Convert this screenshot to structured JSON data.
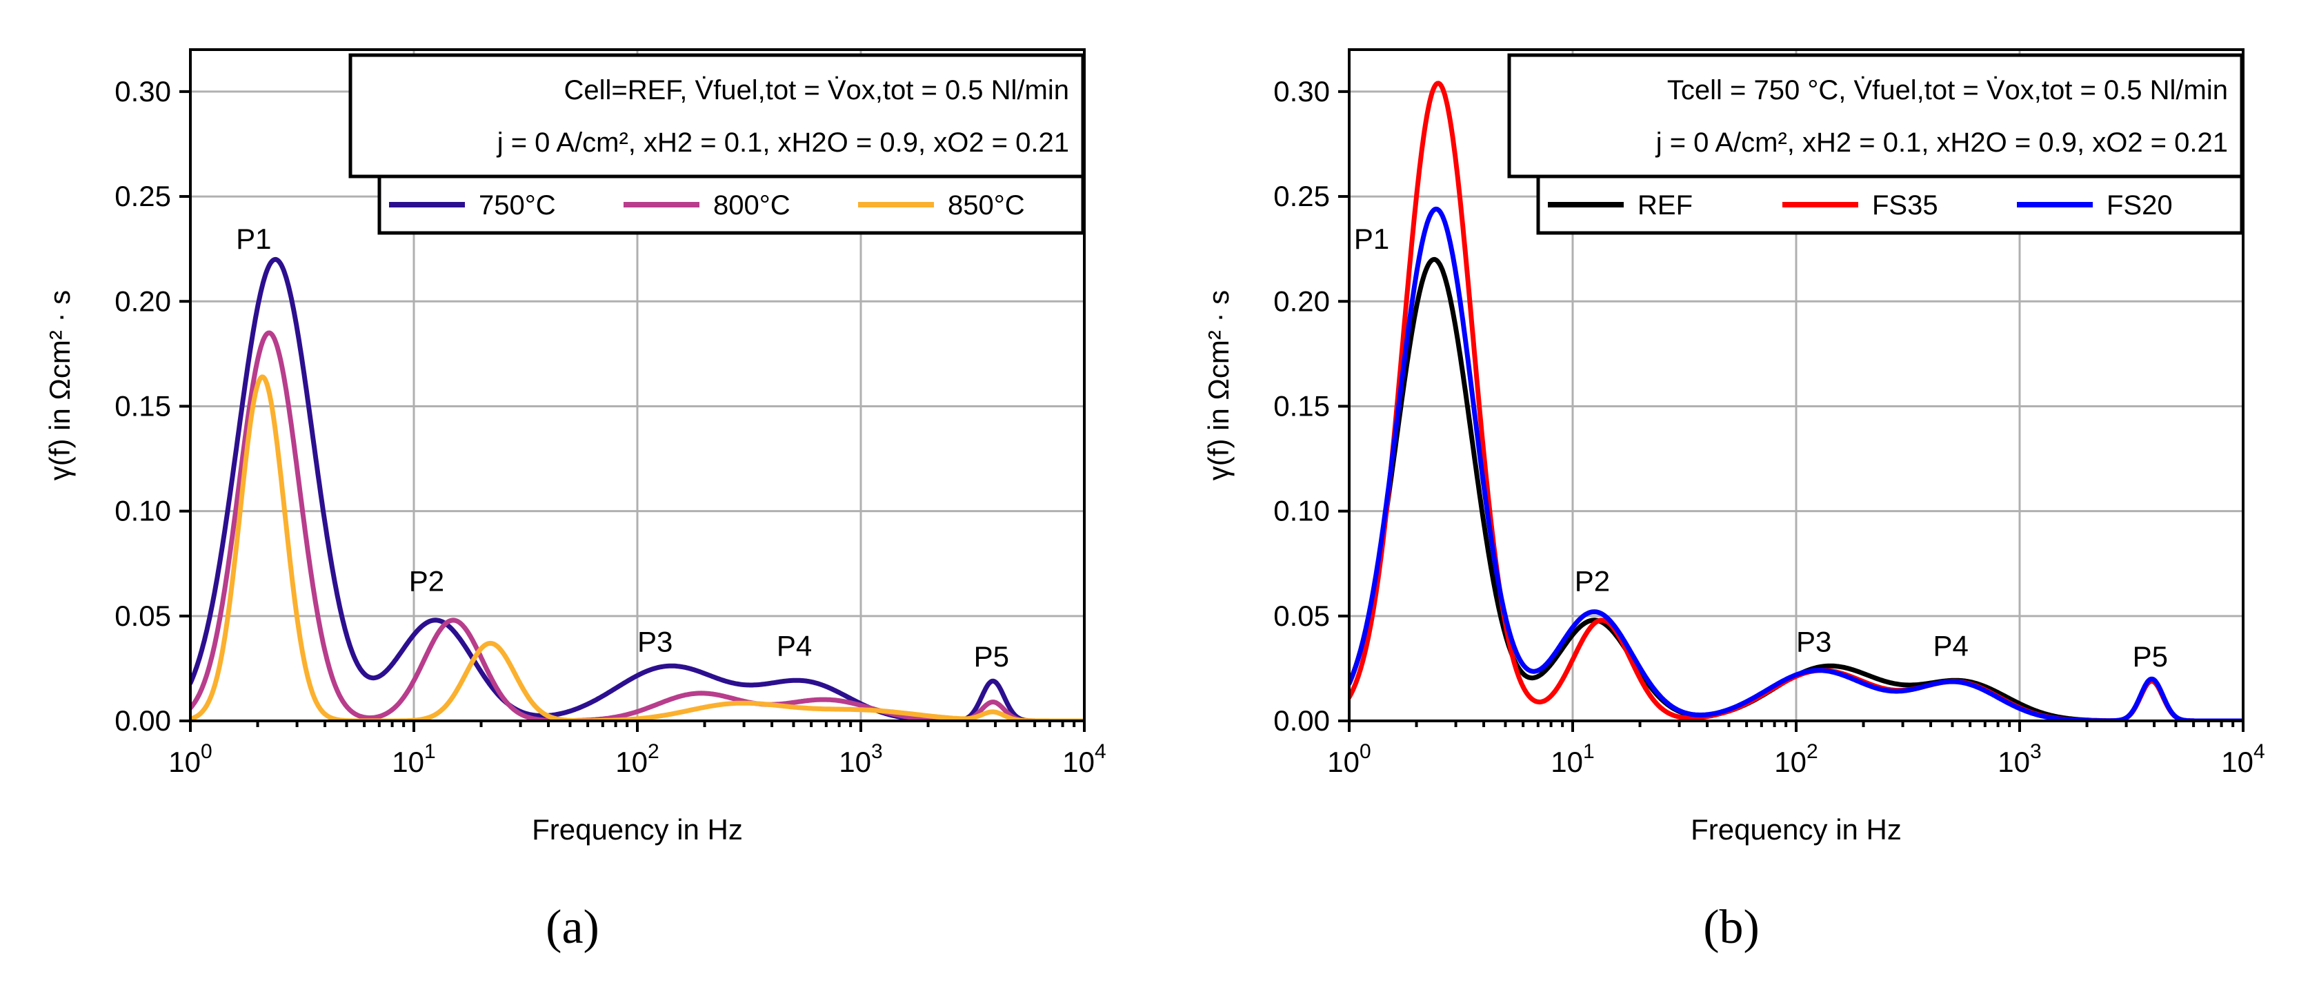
{
  "chart_data": [
    {
      "type": "line",
      "panel_label": "(a)",
      "info_line1": "Cell=REF, V̇fuel,tot = V̇ox,tot = 0.5 Nl/min",
      "info_line2": "j = 0 A/cm², xH2 = 0.1, xH2O = 0.9, xO2 = 0.21",
      "xlabel": "Frequency in Hz",
      "ylabel": "γ(f) in Ωcm² · s",
      "xscale": "log",
      "xlim": [
        1,
        10000
      ],
      "ylim": [
        0,
        0.32
      ],
      "x_ticks": [
        {
          "value": 1,
          "base": "10",
          "exp": "0"
        },
        {
          "value": 10,
          "base": "10",
          "exp": "1"
        },
        {
          "value": 100,
          "base": "10",
          "exp": "2"
        },
        {
          "value": 1000,
          "base": "10",
          "exp": "3"
        },
        {
          "value": 10000,
          "base": "10",
          "exp": "4"
        }
      ],
      "y_ticks": [
        {
          "value": 0,
          "label": "0.00"
        },
        {
          "value": 0.05,
          "label": "0.05"
        },
        {
          "value": 0.1,
          "label": "0.10"
        },
        {
          "value": 0.15,
          "label": "0.15"
        },
        {
          "value": 0.2,
          "label": "0.20"
        },
        {
          "value": 0.25,
          "label": "0.25"
        },
        {
          "value": 0.3,
          "label": "0.30"
        }
      ],
      "grid": true,
      "legend_position": "upper-right",
      "annotations": [
        {
          "text": "P1",
          "x": 1.6,
          "y": 0.225
        },
        {
          "text": "P2",
          "x": 9.5,
          "y": 0.062
        },
        {
          "text": "P3",
          "x": 100,
          "y": 0.033
        },
        {
          "text": "P4",
          "x": 420,
          "y": 0.031
        },
        {
          "text": "P5",
          "x": 3200,
          "y": 0.026
        }
      ],
      "series": [
        {
          "name": "750°C",
          "color": "#2c0f8f",
          "peaks": [
            [
              2.4,
              0.22,
              0.17
            ],
            [
              12.5,
              0.048,
              0.17
            ],
            [
              140,
              0.026,
              0.24
            ],
            [
              560,
              0.018,
              0.2
            ],
            [
              3900,
              0.019,
              0.05
            ]
          ]
        },
        {
          "name": "800°C",
          "color": "#b83d8c",
          "peaks": [
            [
              2.25,
              0.185,
              0.135
            ],
            [
              15,
              0.048,
              0.13
            ],
            [
              190,
              0.013,
              0.19
            ],
            [
              700,
              0.01,
              0.2
            ],
            [
              3900,
              0.009,
              0.05
            ]
          ]
        },
        {
          "name": "850°C",
          "color": "#fbb02e",
          "peaks": [
            [
              2.1,
              0.164,
              0.1
            ],
            [
              22,
              0.037,
              0.11
            ],
            [
              280,
              0.008,
              0.22
            ],
            [
              1000,
              0.005,
              0.25
            ],
            [
              3900,
              0.004,
              0.05
            ]
          ]
        }
      ]
    },
    {
      "type": "line",
      "panel_label": "(b)",
      "info_line1": "Tcell = 750 °C, V̇fuel,tot = V̇ox,tot = 0.5 Nl/min",
      "info_line2": "j = 0 A/cm², xH2 = 0.1, xH2O = 0.9, xO2 = 0.21",
      "xlabel": "Frequency in Hz",
      "ylabel": "γ(f) in Ωcm² · s",
      "xscale": "log",
      "xlim": [
        1,
        10000
      ],
      "ylim": [
        0,
        0.32
      ],
      "x_ticks": [
        {
          "value": 1,
          "base": "10",
          "exp": "0"
        },
        {
          "value": 10,
          "base": "10",
          "exp": "1"
        },
        {
          "value": 100,
          "base": "10",
          "exp": "2"
        },
        {
          "value": 1000,
          "base": "10",
          "exp": "3"
        },
        {
          "value": 10000,
          "base": "10",
          "exp": "4"
        }
      ],
      "y_ticks": [
        {
          "value": 0,
          "label": "0.00"
        },
        {
          "value": 0.05,
          "label": "0.05"
        },
        {
          "value": 0.1,
          "label": "0.10"
        },
        {
          "value": 0.15,
          "label": "0.15"
        },
        {
          "value": 0.2,
          "label": "0.20"
        },
        {
          "value": 0.25,
          "label": "0.25"
        },
        {
          "value": 0.3,
          "label": "0.30"
        }
      ],
      "grid": true,
      "legend_position": "upper-right",
      "annotations": [
        {
          "text": "P1",
          "x": 1.05,
          "y": 0.225
        },
        {
          "text": "P2",
          "x": 10.2,
          "y": 0.062
        },
        {
          "text": "P3",
          "x": 100,
          "y": 0.033
        },
        {
          "text": "P4",
          "x": 410,
          "y": 0.031
        },
        {
          "text": "P5",
          "x": 3200,
          "y": 0.026
        }
      ],
      "series": [
        {
          "name": "REF",
          "color": "#000000",
          "peaks": [
            [
              2.4,
              0.22,
              0.17
            ],
            [
              12.5,
              0.048,
              0.17
            ],
            [
              140,
              0.026,
              0.24
            ],
            [
              560,
              0.018,
              0.2
            ],
            [
              3900,
              0.019,
              0.05
            ]
          ]
        },
        {
          "name": "FS35",
          "color": "#ff0000",
          "peaks": [
            [
              2.5,
              0.304,
              0.155
            ],
            [
              13.5,
              0.048,
              0.13
            ],
            [
              130,
              0.024,
              0.23
            ],
            [
              530,
              0.018,
              0.19
            ],
            [
              3900,
              0.019,
              0.05
            ]
          ]
        },
        {
          "name": "FS20",
          "color": "#0000ff",
          "peaks": [
            [
              2.45,
              0.244,
              0.17
            ],
            [
              12.5,
              0.052,
              0.17
            ],
            [
              125,
              0.024,
              0.23
            ],
            [
              520,
              0.018,
              0.19
            ],
            [
              3900,
              0.02,
              0.05
            ]
          ]
        }
      ]
    }
  ]
}
